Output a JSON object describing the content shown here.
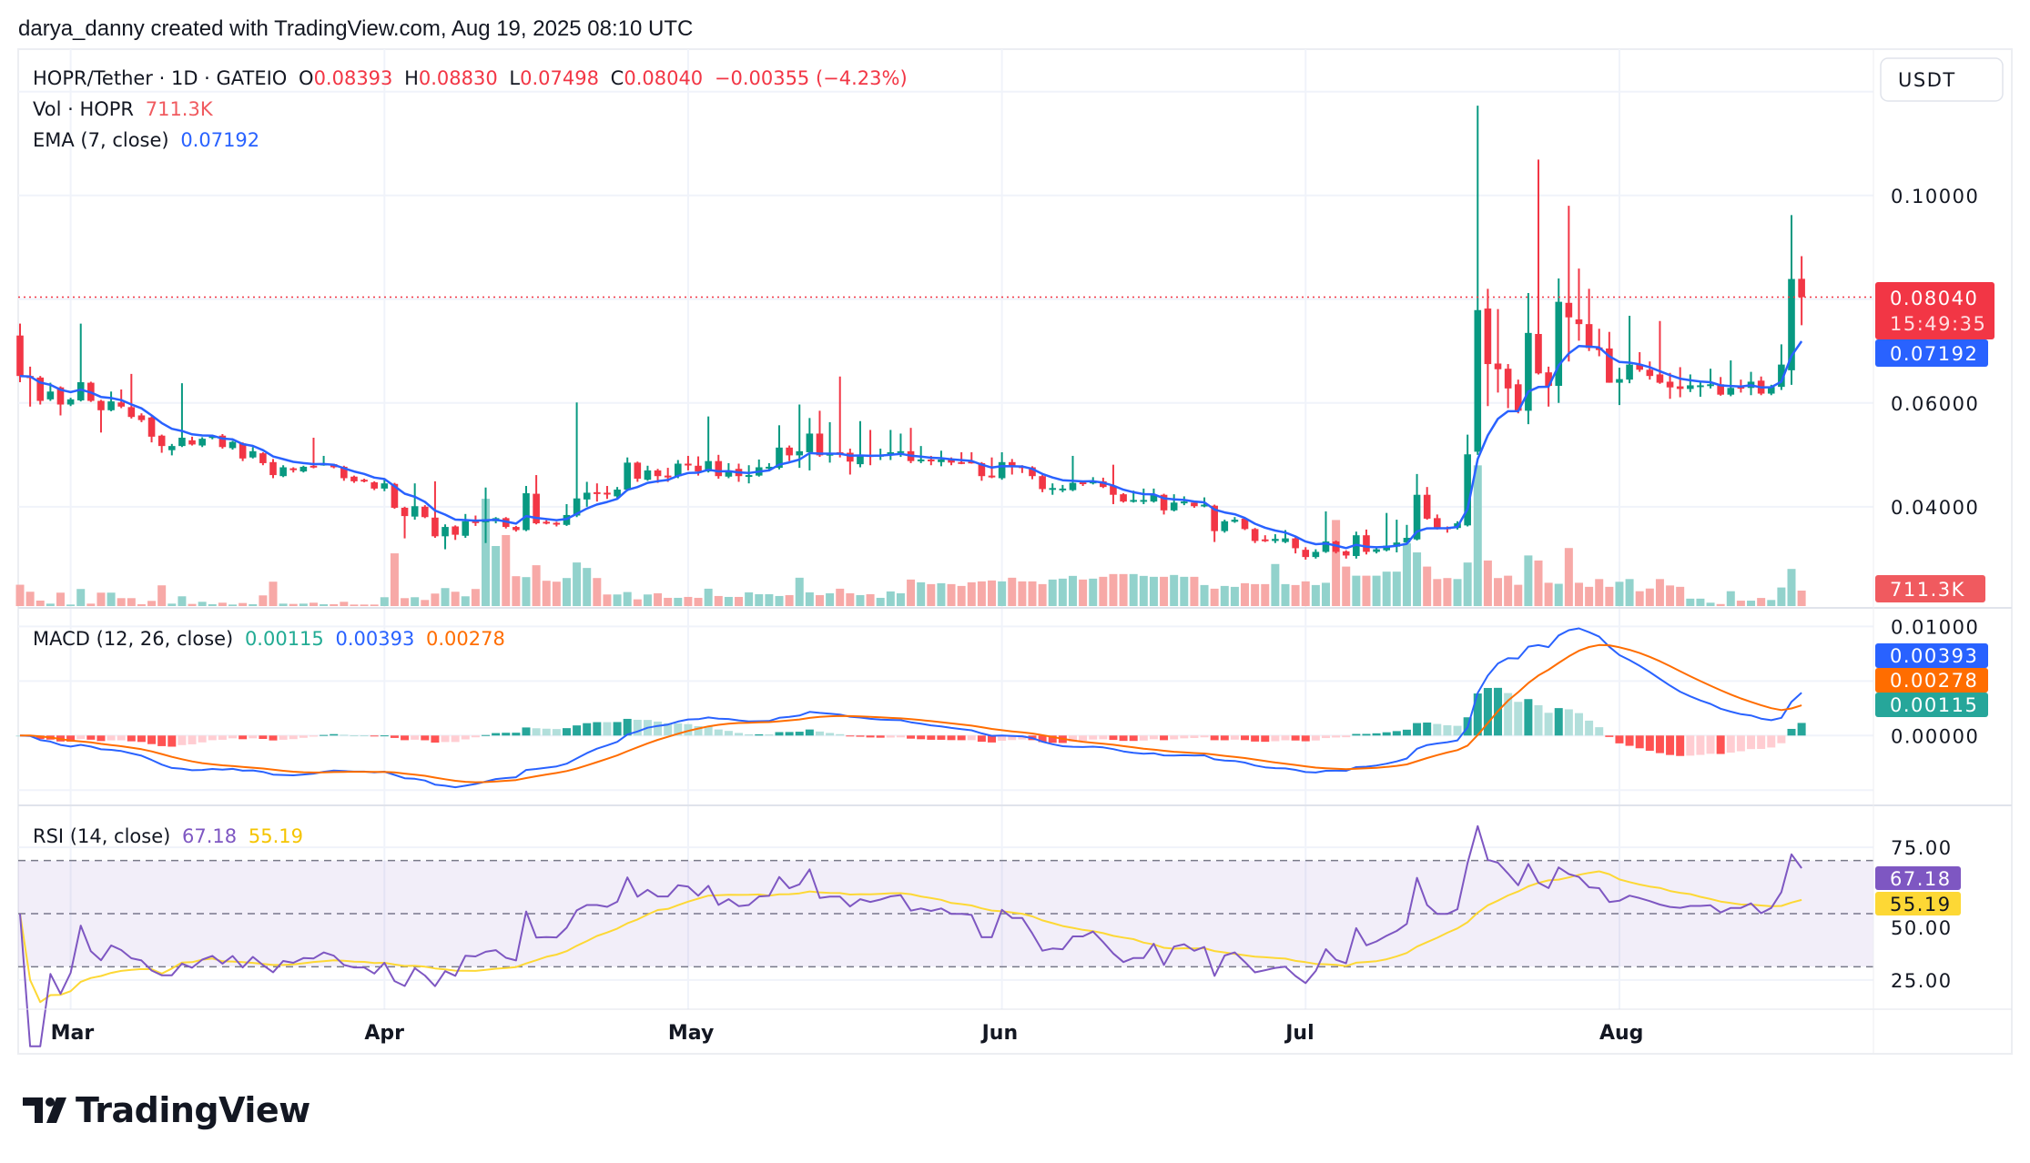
{
  "header": {
    "attribution": "darya_danny created with TradingView.com, Aug 19, 2025 08:10 UTC"
  },
  "legend": {
    "symbol": "HOPR/Tether · 1D · GATEIO",
    "o_label": "O",
    "o": "0.08393",
    "h_label": "H",
    "h": "0.08830",
    "l_label": "L",
    "l": "0.07498",
    "c_label": "C",
    "c": "0.08040",
    "change": "−0.00355 (−4.23%)",
    "vol_label": "Vol · HOPR",
    "vol": "711.3K",
    "ema_label": "EMA (7, close)",
    "ema": "0.07192",
    "macd_label": "MACD (12, 26, close)",
    "macd_hist": "0.00115",
    "macd": "0.00393",
    "macd_signal": "0.00278",
    "rsi_label": "RSI (14, close)",
    "rsi": "67.18",
    "rsi_ma": "55.19"
  },
  "axis": {
    "currency": "USDT",
    "price_ticks": [
      "0.10000",
      "0.06000",
      "0.04000"
    ],
    "macd_ticks": [
      "0.01000",
      "0.00000"
    ],
    "rsi_ticks": [
      "75.00",
      "50.00",
      "25.00"
    ],
    "time_ticks": [
      "Mar",
      "Apr",
      "May",
      "Jun",
      "Jul",
      "Aug"
    ]
  },
  "badges": {
    "last_price": "0.08040",
    "countdown": "15:49:35",
    "ema": "0.07192",
    "volume": "711.3K",
    "macd": "0.00393",
    "signal": "0.00278",
    "hist": "0.00115",
    "rsi": "67.18",
    "rsi_ma": "55.19"
  },
  "brand": "TradingView",
  "colors": {
    "up": "#089981",
    "down": "#f23645",
    "vol_up": "#92d2cc",
    "vol_down": "#f7a9a7",
    "ema": "#2962ff",
    "macd": "#2962ff",
    "signal": "#ff6d00",
    "hist_up_strong": "#26a69a",
    "hist_up_weak": "#b2dfdb",
    "hist_down_strong": "#ff5252",
    "hist_down_weak": "#ffcdd2",
    "rsi": "#7e57c2",
    "rsi_ma": "#fdd835",
    "rsi_band": "#7e57c2",
    "vol_badge": "#f05a5f",
    "grid": "#f0f3fa",
    "border": "#e0e3eb"
  },
  "chart_data": {
    "type": "candlestick",
    "title": "HOPR/Tether · 1D · GATEIO",
    "x_labels": [
      "Mar",
      "Apr",
      "May",
      "Jun",
      "Jul",
      "Aug"
    ],
    "price_ylim": [
      0.0205,
      0.1282
    ],
    "macd_ylim": [
      -0.0064,
      0.0117
    ],
    "rsi_ylim": [
      14.0,
      90.8
    ],
    "rsi_bands": [
      70,
      30
    ],
    "indicators": {
      "ema_period": 7,
      "macd": [
        12,
        26,
        9
      ],
      "rsi_period": 14,
      "rsi_ma_period": 14
    },
    "grid": true,
    "ohlc": [
      [
        0.073,
        0.0753,
        0.064,
        0.0652
      ],
      [
        0.0652,
        0.067,
        0.0593,
        0.0648
      ],
      [
        0.0649,
        0.0652,
        0.0597,
        0.0604
      ],
      [
        0.0607,
        0.0639,
        0.0604,
        0.0622
      ],
      [
        0.063,
        0.0632,
        0.0576,
        0.0597
      ],
      [
        0.0597,
        0.061,
        0.0594,
        0.0607
      ],
      [
        0.0605,
        0.0753,
        0.0603,
        0.064
      ],
      [
        0.0639,
        0.0641,
        0.0602,
        0.0604
      ],
      [
        0.0604,
        0.0606,
        0.0543,
        0.0586
      ],
      [
        0.0586,
        0.0622,
        0.0584,
        0.0603
      ],
      [
        0.0601,
        0.0626,
        0.059,
        0.0593
      ],
      [
        0.0592,
        0.0656,
        0.057,
        0.0573
      ],
      [
        0.0576,
        0.058,
        0.0563,
        0.0567
      ],
      [
        0.0572,
        0.0574,
        0.0524,
        0.0535
      ],
      [
        0.0537,
        0.0539,
        0.0504,
        0.0517
      ],
      [
        0.0509,
        0.0521,
        0.0499,
        0.0517
      ],
      [
        0.0517,
        0.0638,
        0.0515,
        0.0533
      ],
      [
        0.0528,
        0.0535,
        0.0518,
        0.052
      ],
      [
        0.0518,
        0.0534,
        0.0515,
        0.0531
      ],
      [
        0.0533,
        0.0538,
        0.053,
        0.0536
      ],
      [
        0.0537,
        0.054,
        0.0512,
        0.0515
      ],
      [
        0.0513,
        0.0527,
        0.051,
        0.0525
      ],
      [
        0.0522,
        0.0524,
        0.0488,
        0.0493
      ],
      [
        0.0495,
        0.0515,
        0.0493,
        0.0507
      ],
      [
        0.0503,
        0.0505,
        0.048,
        0.0484
      ],
      [
        0.0486,
        0.0492,
        0.0455,
        0.0461
      ],
      [
        0.0459,
        0.048,
        0.0457,
        0.0476
      ],
      [
        0.0474,
        0.0476,
        0.0466,
        0.0471
      ],
      [
        0.0468,
        0.0479,
        0.0466,
        0.0477
      ],
      [
        0.0479,
        0.0533,
        0.0474,
        0.0476
      ],
      [
        0.0481,
        0.0498,
        0.0479,
        0.0483
      ],
      [
        0.0482,
        0.0483,
        0.0474,
        0.0476
      ],
      [
        0.0477,
        0.0479,
        0.045,
        0.0455
      ],
      [
        0.0458,
        0.046,
        0.0446,
        0.0449
      ],
      [
        0.0452,
        0.0454,
        0.0447,
        0.0449
      ],
      [
        0.0447,
        0.0449,
        0.0432,
        0.0435
      ],
      [
        0.0435,
        0.0455,
        0.043,
        0.0445
      ],
      [
        0.0444,
        0.0446,
        0.0396,
        0.0398
      ],
      [
        0.0398,
        0.04,
        0.0339,
        0.0382
      ],
      [
        0.0381,
        0.0445,
        0.0375,
        0.0401
      ],
      [
        0.04,
        0.0403,
        0.0378,
        0.038
      ],
      [
        0.0379,
        0.0449,
        0.034,
        0.0343
      ],
      [
        0.0343,
        0.0366,
        0.0318,
        0.0361
      ],
      [
        0.0362,
        0.0364,
        0.0336,
        0.0346
      ],
      [
        0.0344,
        0.0386,
        0.034,
        0.0372
      ],
      [
        0.0372,
        0.0383,
        0.0363,
        0.037
      ],
      [
        0.037,
        0.0437,
        0.033,
        0.0376
      ],
      [
        0.0372,
        0.038,
        0.0368,
        0.0378
      ],
      [
        0.0378,
        0.038,
        0.0358,
        0.0361
      ],
      [
        0.0361,
        0.0363,
        0.0352,
        0.0355
      ],
      [
        0.0355,
        0.044,
        0.0353,
        0.0426
      ],
      [
        0.0425,
        0.0461,
        0.0366,
        0.0368
      ],
      [
        0.0371,
        0.0374,
        0.0366,
        0.0369
      ],
      [
        0.0369,
        0.0371,
        0.0362,
        0.0368
      ],
      [
        0.0365,
        0.0405,
        0.0363,
        0.0384
      ],
      [
        0.0383,
        0.0601,
        0.038,
        0.0416
      ],
      [
        0.0414,
        0.0448,
        0.04,
        0.0427
      ],
      [
        0.0428,
        0.0445,
        0.041,
        0.0427
      ],
      [
        0.0427,
        0.044,
        0.0415,
        0.0424
      ],
      [
        0.042,
        0.0438,
        0.0417,
        0.0433
      ],
      [
        0.0433,
        0.0495,
        0.043,
        0.0485
      ],
      [
        0.0485,
        0.0487,
        0.0448,
        0.0454
      ],
      [
        0.0452,
        0.0479,
        0.045,
        0.047
      ],
      [
        0.047,
        0.0473,
        0.0446,
        0.0459
      ],
      [
        0.046,
        0.0475,
        0.0448,
        0.0459
      ],
      [
        0.0459,
        0.049,
        0.0455,
        0.0483
      ],
      [
        0.0483,
        0.0498,
        0.047,
        0.0481
      ],
      [
        0.0479,
        0.0497,
        0.046,
        0.0468
      ],
      [
        0.0468,
        0.0574,
        0.0466,
        0.0488
      ],
      [
        0.0488,
        0.05,
        0.0454,
        0.0459
      ],
      [
        0.0458,
        0.0484,
        0.0455,
        0.047
      ],
      [
        0.0473,
        0.0483,
        0.0448,
        0.0459
      ],
      [
        0.046,
        0.048,
        0.0445,
        0.0461
      ],
      [
        0.046,
        0.0491,
        0.0458,
        0.0476
      ],
      [
        0.0475,
        0.0484,
        0.047,
        0.0477
      ],
      [
        0.0475,
        0.0557,
        0.0472,
        0.0514
      ],
      [
        0.0514,
        0.0518,
        0.0488,
        0.0499
      ],
      [
        0.0499,
        0.0597,
        0.0475,
        0.0507
      ],
      [
        0.0505,
        0.0571,
        0.047,
        0.0541
      ],
      [
        0.0541,
        0.0585,
        0.0496,
        0.0499
      ],
      [
        0.0501,
        0.0563,
        0.0485,
        0.0502
      ],
      [
        0.0505,
        0.0651,
        0.0495,
        0.0502
      ],
      [
        0.0504,
        0.0512,
        0.0462,
        0.0487
      ],
      [
        0.0482,
        0.0565,
        0.0476,
        0.05
      ],
      [
        0.05,
        0.0548,
        0.048,
        0.0496
      ],
      [
        0.0498,
        0.0512,
        0.049,
        0.05
      ],
      [
        0.0499,
        0.0548,
        0.049,
        0.0505
      ],
      [
        0.0506,
        0.0541,
        0.0496,
        0.0507
      ],
      [
        0.0507,
        0.0552,
        0.0484,
        0.0488
      ],
      [
        0.0489,
        0.0517,
        0.0484,
        0.0491
      ],
      [
        0.0491,
        0.0498,
        0.048,
        0.0488
      ],
      [
        0.0486,
        0.0508,
        0.0478,
        0.0491
      ],
      [
        0.0491,
        0.0495,
        0.048,
        0.0485
      ],
      [
        0.0486,
        0.0505,
        0.0482,
        0.0485
      ],
      [
        0.0487,
        0.0505,
        0.0483,
        0.0484
      ],
      [
        0.0484,
        0.0486,
        0.045,
        0.0459
      ],
      [
        0.046,
        0.0495,
        0.0455,
        0.0459
      ],
      [
        0.0455,
        0.0505,
        0.0452,
        0.0486
      ],
      [
        0.0486,
        0.0492,
        0.0462,
        0.0477
      ],
      [
        0.0478,
        0.048,
        0.0465,
        0.0477
      ],
      [
        0.0476,
        0.0478,
        0.0453,
        0.0459
      ],
      [
        0.0459,
        0.0461,
        0.0428,
        0.0434
      ],
      [
        0.0436,
        0.0445,
        0.0423,
        0.0436
      ],
      [
        0.0435,
        0.0442,
        0.0428,
        0.0435
      ],
      [
        0.0432,
        0.0498,
        0.043,
        0.0446
      ],
      [
        0.0447,
        0.0449,
        0.044,
        0.0446
      ],
      [
        0.0445,
        0.0457,
        0.0443,
        0.045
      ],
      [
        0.0449,
        0.0456,
        0.0436,
        0.0438
      ],
      [
        0.044,
        0.0481,
        0.0405,
        0.0423
      ],
      [
        0.0424,
        0.0426,
        0.0408,
        0.041
      ],
      [
        0.0411,
        0.0431,
        0.0408,
        0.0413
      ],
      [
        0.041,
        0.0435,
        0.0405,
        0.0413
      ],
      [
        0.041,
        0.0435,
        0.0408,
        0.0423
      ],
      [
        0.0423,
        0.0425,
        0.0385,
        0.0393
      ],
      [
        0.0393,
        0.0424,
        0.0391,
        0.0408
      ],
      [
        0.041,
        0.042,
        0.0403,
        0.041
      ],
      [
        0.0408,
        0.0412,
        0.0398,
        0.0401
      ],
      [
        0.0401,
        0.0418,
        0.0399,
        0.0404
      ],
      [
        0.0402,
        0.0404,
        0.0332,
        0.0353
      ],
      [
        0.0353,
        0.0375,
        0.035,
        0.0372
      ],
      [
        0.0371,
        0.038,
        0.0369,
        0.0375
      ],
      [
        0.0377,
        0.0379,
        0.0355,
        0.0357
      ],
      [
        0.0357,
        0.0359,
        0.033,
        0.0334
      ],
      [
        0.0337,
        0.0345,
        0.0332,
        0.0336
      ],
      [
        0.0334,
        0.0347,
        0.033,
        0.0338
      ],
      [
        0.0332,
        0.0355,
        0.033,
        0.0339
      ],
      [
        0.0339,
        0.0344,
        0.031,
        0.032
      ],
      [
        0.0317,
        0.0322,
        0.0298,
        0.0303
      ],
      [
        0.0303,
        0.0318,
        0.03,
        0.0313
      ],
      [
        0.0313,
        0.0391,
        0.0311,
        0.0333
      ],
      [
        0.0333,
        0.0335,
        0.031,
        0.0313
      ],
      [
        0.0314,
        0.0316,
        0.03,
        0.0306
      ],
      [
        0.0305,
        0.0352,
        0.03,
        0.0345
      ],
      [
        0.0345,
        0.0356,
        0.0308,
        0.0313
      ],
      [
        0.0313,
        0.0322,
        0.031,
        0.0318
      ],
      [
        0.0316,
        0.0388,
        0.0314,
        0.0325
      ],
      [
        0.0323,
        0.0375,
        0.0312,
        0.0331
      ],
      [
        0.0331,
        0.0365,
        0.0328,
        0.034
      ],
      [
        0.0337,
        0.0463,
        0.0335,
        0.0423
      ],
      [
        0.0423,
        0.0438,
        0.0375,
        0.0377
      ],
      [
        0.0378,
        0.0385,
        0.0356,
        0.0359
      ],
      [
        0.036,
        0.0362,
        0.035,
        0.0359
      ],
      [
        0.0359,
        0.0372,
        0.0356,
        0.0368
      ],
      [
        0.0364,
        0.0539,
        0.0362,
        0.0501
      ],
      [
        0.0506,
        0.1173,
        0.05,
        0.0779
      ],
      [
        0.0782,
        0.082,
        0.0594,
        0.0675
      ],
      [
        0.0676,
        0.0781,
        0.062,
        0.0665
      ],
      [
        0.0666,
        0.0675,
        0.059,
        0.0628
      ],
      [
        0.0636,
        0.0645,
        0.058,
        0.0585
      ],
      [
        0.0585,
        0.0812,
        0.0559,
        0.0735
      ],
      [
        0.0733,
        0.1069,
        0.0655,
        0.0657
      ],
      [
        0.0659,
        0.067,
        0.0593,
        0.0633
      ],
      [
        0.0633,
        0.084,
        0.06,
        0.0795
      ],
      [
        0.0793,
        0.098,
        0.068,
        0.0765
      ],
      [
        0.0761,
        0.0859,
        0.072,
        0.0752
      ],
      [
        0.0752,
        0.082,
        0.07,
        0.0706
      ],
      [
        0.0707,
        0.0743,
        0.069,
        0.0702
      ],
      [
        0.0705,
        0.0737,
        0.0639,
        0.0639
      ],
      [
        0.0639,
        0.0668,
        0.0596,
        0.0646
      ],
      [
        0.0645,
        0.0768,
        0.0638,
        0.0674
      ],
      [
        0.0674,
        0.0698,
        0.066,
        0.0664
      ],
      [
        0.0664,
        0.068,
        0.0645,
        0.0652
      ],
      [
        0.0655,
        0.0758,
        0.0637,
        0.0639
      ],
      [
        0.0641,
        0.0658,
        0.0608,
        0.063
      ],
      [
        0.0632,
        0.0669,
        0.0611,
        0.0627
      ],
      [
        0.0627,
        0.0655,
        0.0621,
        0.0634
      ],
      [
        0.0634,
        0.0641,
        0.0612,
        0.0634
      ],
      [
        0.0635,
        0.0666,
        0.0628,
        0.0636
      ],
      [
        0.0636,
        0.065,
        0.0614,
        0.0616
      ],
      [
        0.0616,
        0.0682,
        0.0613,
        0.0629
      ],
      [
        0.0631,
        0.0645,
        0.062,
        0.0629
      ],
      [
        0.0629,
        0.066,
        0.0615,
        0.0641
      ],
      [
        0.0643,
        0.0651,
        0.0615,
        0.0618
      ],
      [
        0.0618,
        0.0635,
        0.0615,
        0.0631
      ],
      [
        0.0631,
        0.0713,
        0.0625,
        0.0674
      ],
      [
        0.0663,
        0.0962,
        0.0635,
        0.0839
      ],
      [
        0.08393,
        0.0883,
        0.07498,
        0.0804
      ]
    ],
    "volume_k": [
      980,
      658,
      252,
      112,
      616,
      70,
      784,
      112,
      616,
      616,
      364,
      364,
      84,
      238,
      952,
      112,
      448,
      98,
      196,
      84,
      154,
      70,
      140,
      84,
      490,
      1120,
      112,
      98,
      112,
      154,
      84,
      84,
      196,
      70,
      70,
      70,
      406,
      2422,
      364,
      406,
      280,
      574,
      826,
      658,
      448,
      784,
      4928,
      2758,
      3262,
      1372,
      1330,
      1876,
      1162,
      1120,
      1288,
      2002,
      1750,
      1288,
      532,
      532,
      644,
      308,
      532,
      588,
      378,
      378,
      420,
      378,
      798,
      462,
      420,
      420,
      630,
      546,
      546,
      462,
      504,
      1302,
      630,
      504,
      588,
      798,
      588,
      504,
      546,
      378,
      672,
      588,
      1218,
      1092,
      1008,
      1050,
      1008,
      924,
      1092,
      1134,
      1176,
      1134,
      1302,
      1134,
      1134,
      1008,
      1218,
      1260,
      1386,
      1218,
      1260,
      1344,
      1470,
      1470,
      1470,
      1386,
      1344,
      1344,
      1428,
      1344,
      1344,
      966,
      798,
      924,
      882,
      1050,
      1008,
      1008,
      1932,
      1008,
      966,
      1134,
      966,
      1070,
      3953,
      1814,
      1395,
      1395,
      1395,
      1581,
      1581,
      2883,
      2465,
      1814,
      1240,
      1287,
      1240,
      2000,
      6464,
      2093,
      1287,
      1395,
      977,
      2325,
      2093,
      1070,
      1023,
      2666,
      1070,
      884,
      1240,
      884,
      1116,
      1240,
      682,
      806,
      1240,
      946,
      884,
      341,
      341,
      155,
      93,
      682,
      248,
      248,
      372,
      279,
      853,
      1705,
      711.3
    ]
  }
}
